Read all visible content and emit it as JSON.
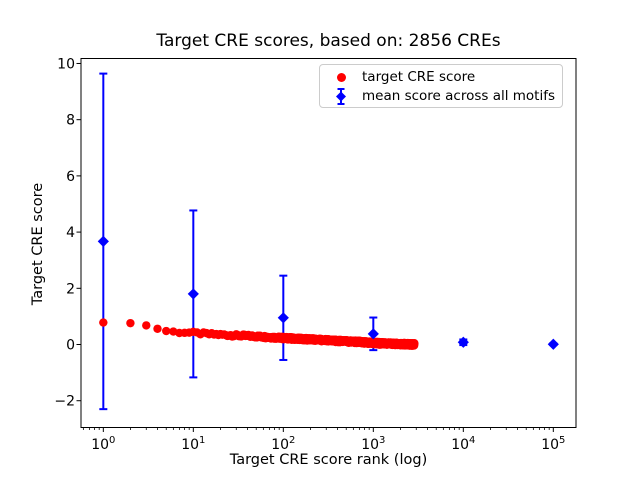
{
  "chart_data": {
    "type": "scatter",
    "title": "Target CRE scores, based on: 2856 CREs",
    "xlabel": "Target CRE score rank (log)",
    "ylabel": "Target CRE score",
    "x_scale": "log",
    "grid": false,
    "legend_position": "upper center inside plot",
    "xlim": [
      0.5649,
      178700
    ],
    "ylim": [
      -2.953,
      10.177
    ],
    "x_major_ticks": [
      1,
      10,
      100,
      1000,
      10000,
      100000
    ],
    "y_ticks": [
      -2,
      0,
      2,
      4,
      6,
      8,
      10
    ],
    "colors": {
      "red": "#ff0000",
      "blue": "#0000ff",
      "spine": "#000000",
      "legend_edge": "#cccccc"
    },
    "series": [
      {
        "name": "target CRE score",
        "type": "scatter",
        "marker": "circle",
        "color": "#ff0000",
        "n_points": 2856,
        "anchors": [
          [
            1,
            0.78
          ],
          [
            2,
            0.76
          ],
          [
            3,
            0.68
          ],
          [
            4,
            0.56
          ],
          [
            5,
            0.48
          ],
          [
            6,
            0.45
          ],
          [
            8,
            0.43
          ],
          [
            10,
            0.41
          ],
          [
            15,
            0.37
          ],
          [
            20,
            0.35
          ],
          [
            30,
            0.32
          ],
          [
            50,
            0.29
          ],
          [
            70,
            0.26
          ],
          [
            100,
            0.23
          ],
          [
            150,
            0.2
          ],
          [
            200,
            0.18
          ],
          [
            300,
            0.15
          ],
          [
            500,
            0.11
          ],
          [
            700,
            0.09
          ],
          [
            1000,
            0.05
          ],
          [
            1500,
            0.03
          ],
          [
            2000,
            0.015
          ],
          [
            2500,
            0.005
          ],
          [
            2856,
            0.0
          ]
        ]
      },
      {
        "name": "mean score across all motifs",
        "type": "errorbar",
        "marker": "diamond",
        "color": "#0000ff",
        "points": [
          {
            "x": 1,
            "y": 3.67,
            "err": 5.97
          },
          {
            "x": 10,
            "y": 1.8,
            "err": 2.97
          },
          {
            "x": 100,
            "y": 0.95,
            "err": 1.5
          },
          {
            "x": 1000,
            "y": 0.38,
            "err": 0.58
          },
          {
            "x": 10000,
            "y": 0.08,
            "err": 0.1
          },
          {
            "x": 100000,
            "y": 0.01,
            "err": 0.03
          }
        ]
      }
    ]
  }
}
